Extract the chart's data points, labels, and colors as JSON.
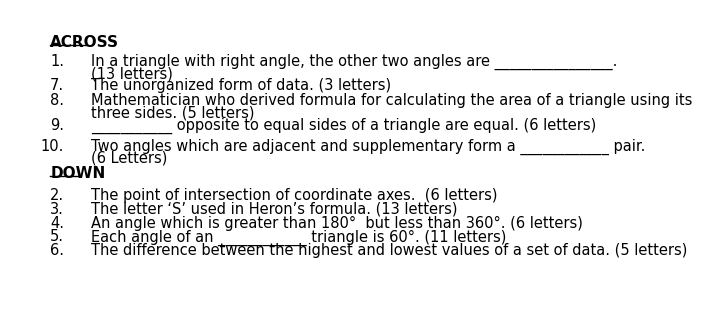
{
  "background_color": "#ffffff",
  "title_across": "ACROSS",
  "title_down": "DOWN",
  "font_size": 10.5,
  "title_font_size": 11,
  "across_items": [
    {
      "number": "1.",
      "line1": "In a triangle with right angle, the other two angles are ________________.",
      "line2": "(13 letters)"
    },
    {
      "number": "7.",
      "line1": "The unorganized form of data. (3 letters)",
      "line2": null
    },
    {
      "number": "8.",
      "line1": "Mathematician who derived formula for calculating the area of a triangle using its",
      "line2": "three sides. (5 letters)"
    },
    {
      "number": "9.",
      "line1": "___________ opposite to equal sides of a triangle are equal. (6 letters)",
      "line2": null
    },
    {
      "number": "10.",
      "line1": "Two angles which are adjacent and supplementary form a ____________ pair.",
      "line2": "(6 Letters)"
    }
  ],
  "down_items": [
    {
      "number": "2.",
      "line1": "The point of intersection of coordinate axes.  (6 letters)",
      "line2": null
    },
    {
      "number": "3.",
      "line1": "The letter ‘S’ used in Heron’s formula. (13 letters)",
      "line2": null
    },
    {
      "number": "4.",
      "line1": "An angle which is greater than 180°  but less than 360°. (6 letters)",
      "line2": null
    },
    {
      "number": "5.",
      "line1": "Each angle of an ____________ triangle is 60°. (11 letters)",
      "line2": null
    },
    {
      "number": "6.",
      "line1": "The difference between the highest and lowest values of a set of data. (5 letters)",
      "line2": null
    }
  ]
}
